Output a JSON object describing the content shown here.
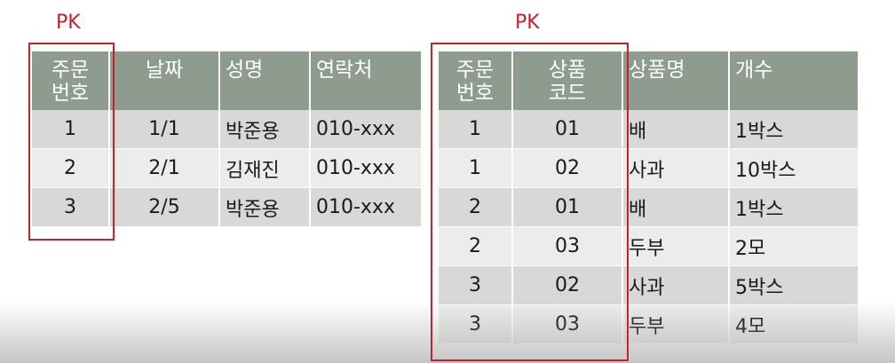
{
  "pk_label": "PK",
  "colors": {
    "header_bg": "#8e9c8f",
    "row_odd": "#d6d9d6",
    "row_even": "#ebedeb",
    "pk_border": "#c9212b"
  },
  "orders_table": {
    "headers": [
      "주문\n번호",
      "날짜",
      "성명",
      "연락처"
    ],
    "rows": [
      [
        "1",
        "1/1",
        "박준용",
        "010-xxx"
      ],
      [
        "2",
        "2/1",
        "김재진",
        "010-xxx"
      ],
      [
        "3",
        "2/5",
        "박준용",
        "010-xxx"
      ]
    ]
  },
  "order_items_table": {
    "headers": [
      "주문\n번호",
      "상품\n코드",
      "상품명",
      "개수"
    ],
    "rows": [
      [
        "1",
        "01",
        "배",
        "1박스"
      ],
      [
        "1",
        "02",
        "사과",
        "10박스"
      ],
      [
        "2",
        "01",
        "배",
        "1박스"
      ],
      [
        "2",
        "03",
        "두부",
        "2모"
      ],
      [
        "3",
        "02",
        "사과",
        "5박스"
      ],
      [
        "3",
        "03",
        "두부",
        "4모"
      ]
    ]
  }
}
